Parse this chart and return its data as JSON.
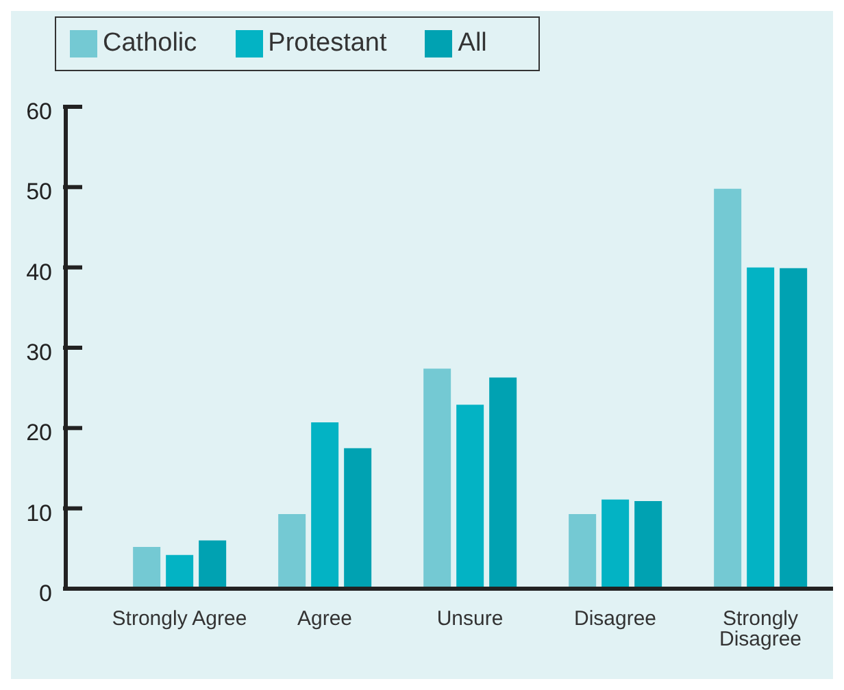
{
  "chart_data": {
    "type": "bar",
    "categories": [
      "Strongly Agree",
      "Agree",
      "Unsure",
      "Disagree",
      "Strongly Disagree"
    ],
    "series": [
      {
        "name": "Catholic",
        "color": "#74c9d3",
        "values": [
          5.2,
          9.3,
          27.4,
          9.3,
          49.8
        ]
      },
      {
        "name": "Protestant",
        "color": "#03b3c4",
        "values": [
          4.2,
          20.7,
          22.9,
          11.1,
          40.0
        ]
      },
      {
        "name": "All",
        "color": "#00a2b2",
        "values": [
          6.0,
          17.5,
          26.3,
          10.9,
          39.9
        ]
      }
    ],
    "ylim": [
      0,
      60
    ],
    "yticks": [
      0,
      10,
      20,
      30,
      40,
      50,
      60
    ],
    "grid": false,
    "legend": "top left"
  }
}
